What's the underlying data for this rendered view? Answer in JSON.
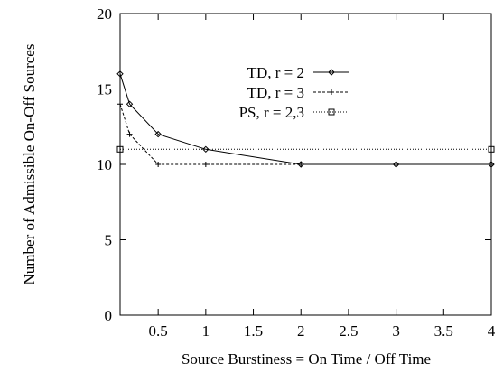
{
  "chart_data": {
    "type": "line",
    "title": "",
    "xlabel": "Source Burstiness = On Time / Off Time",
    "ylabel": "Number of Admissible On-Off Sources",
    "xlim": [
      0.1,
      4
    ],
    "ylim": [
      0,
      20
    ],
    "x_ticks": [
      0.5,
      1,
      1.5,
      2,
      2.5,
      3,
      3.5,
      4
    ],
    "x_tick_labels": [
      "0.5",
      "1",
      "1.5",
      "2",
      "2.5",
      "3",
      "3.5",
      "4"
    ],
    "y_ticks": [
      0,
      5,
      10,
      15,
      20
    ],
    "y_tick_labels": [
      "0",
      "5",
      "10",
      "15",
      "20"
    ],
    "grid": false,
    "legend_position": "top-right",
    "series": [
      {
        "name": "TD, r = 2",
        "style": "solid",
        "marker": "diamond",
        "color": "#000000",
        "points": [
          [
            0.1,
            16
          ],
          [
            0.2,
            14
          ],
          [
            0.5,
            12
          ],
          [
            1,
            11
          ],
          [
            2,
            10
          ],
          [
            3,
            10
          ],
          [
            4,
            10
          ]
        ]
      },
      {
        "name": "TD, r = 3",
        "style": "dashed",
        "marker": "plus",
        "color": "#000000",
        "points": [
          [
            0.1,
            14
          ],
          [
            0.2,
            12
          ],
          [
            0.5,
            10
          ],
          [
            1,
            10
          ],
          [
            2,
            10
          ],
          [
            3,
            10
          ],
          [
            4,
            10
          ]
        ]
      },
      {
        "name": "PS, r = 2,3",
        "style": "dotted",
        "marker": "square",
        "color": "#000000",
        "points": [
          [
            0.1,
            11
          ],
          [
            4,
            11
          ]
        ]
      }
    ]
  }
}
